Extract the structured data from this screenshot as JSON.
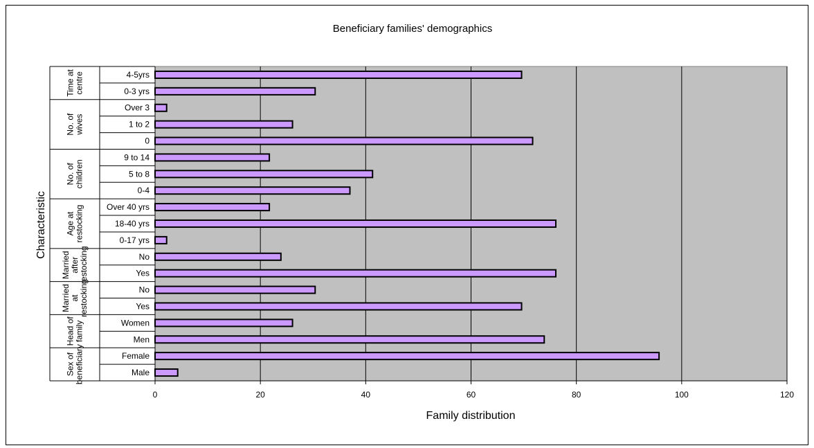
{
  "chart_data": {
    "type": "bar",
    "orientation": "horizontal",
    "title": "Beneficiary families' demographics",
    "xlabel": "Family distribution",
    "ylabel": "Characteristic",
    "xlim": [
      0,
      120
    ],
    "xticks": [
      0,
      20,
      40,
      60,
      80,
      100,
      120
    ],
    "grid": true,
    "legend": "none",
    "colors": {
      "bar_fill": "#CC99FF",
      "bar_stroke": "#000000",
      "plot_bg": "#C0C0C0"
    },
    "groups": [
      {
        "label": "Sex of beneficiary",
        "categories": [
          "Male",
          "Female"
        ],
        "values": [
          4.3,
          95.7
        ]
      },
      {
        "label": "Head of family",
        "categories": [
          "Men",
          "Women"
        ],
        "values": [
          73.9,
          26.1
        ]
      },
      {
        "label": "Married at restocking",
        "categories": [
          "Yes",
          "No"
        ],
        "values": [
          69.6,
          30.4
        ]
      },
      {
        "label": "Married after restocking",
        "categories": [
          "Yes",
          "No"
        ],
        "values": [
          76.1,
          23.9
        ]
      },
      {
        "label": "Age at restocking",
        "categories": [
          "0-17 yrs",
          "18-40 yrs",
          "Over 40 yrs"
        ],
        "values": [
          2.2,
          76.1,
          21.7
        ]
      },
      {
        "label": "No. of children",
        "categories": [
          "0-4",
          "5 to 8",
          "9 to 14"
        ],
        "values": [
          37.0,
          41.3,
          21.7
        ]
      },
      {
        "label": "No. of wives",
        "categories": [
          "0",
          "1 to 2",
          "Over 3"
        ],
        "values": [
          71.7,
          26.1,
          2.2
        ]
      },
      {
        "label": "Time at centre",
        "categories": [
          "0-3 yrs",
          "4-5yrs"
        ],
        "values": [
          30.4,
          69.6
        ]
      }
    ]
  }
}
